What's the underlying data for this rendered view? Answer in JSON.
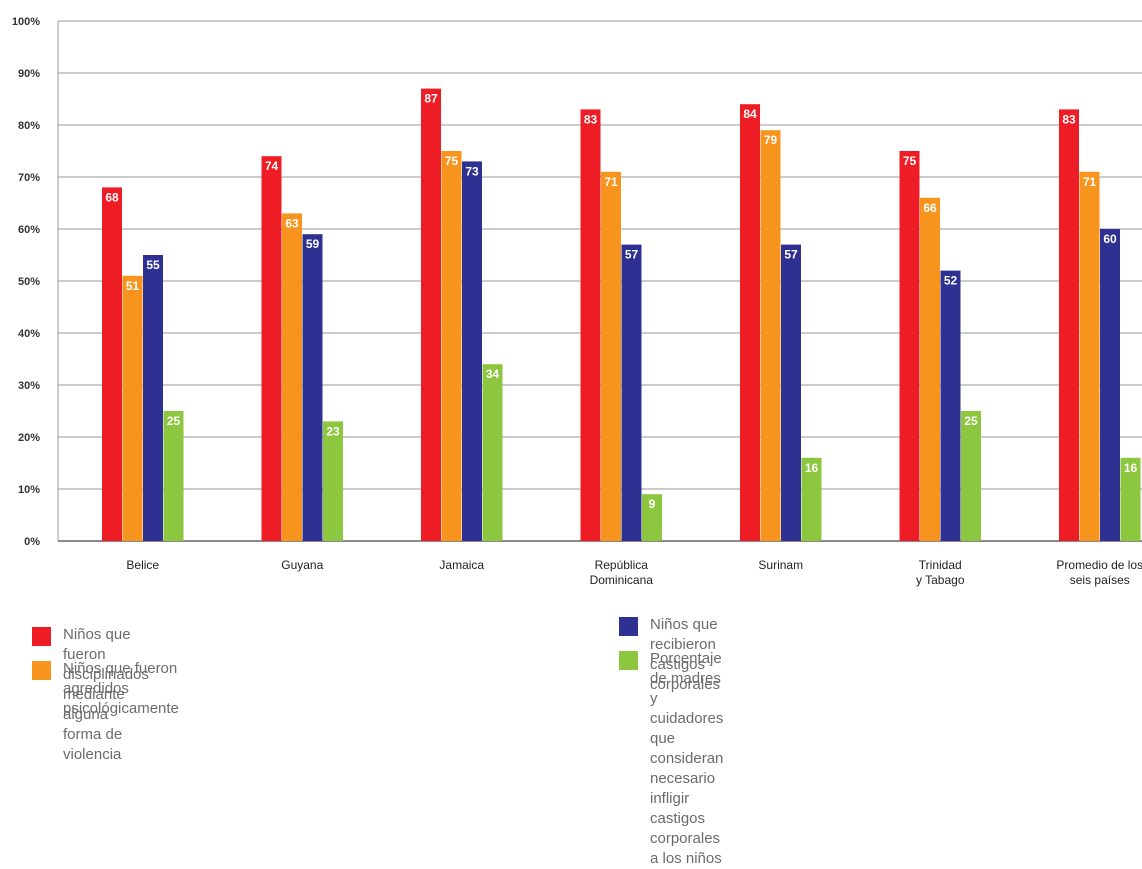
{
  "chart_data": {
    "type": "bar",
    "categories": [
      "Belice",
      "Guyana",
      "Jamaica",
      "República\nDominicana",
      "Surinam",
      "Trinidad\ny Tabago",
      "Promedio de los\nseis países"
    ],
    "series": [
      {
        "name": "Niños que fueron disciplinados mediante alguna forma de violencia",
        "color": "#ee1c24",
        "values": [
          68,
          74,
          87,
          83,
          84,
          75,
          83
        ]
      },
      {
        "name": "Niños que fueron agredidos psicológicamente",
        "color": "#f7941d",
        "values": [
          51,
          63,
          75,
          71,
          79,
          66,
          71
        ]
      },
      {
        "name": "Niños que recibieron castigos corporales",
        "color": "#2e3192",
        "values": [
          55,
          59,
          73,
          57,
          57,
          52,
          60
        ]
      },
      {
        "name": "Porcentaje de madres y cuidadores que consideran necesario\ninfligir castigos corporales a los niños",
        "color": "#8dc63f",
        "values": [
          25,
          23,
          34,
          9,
          16,
          25,
          16
        ]
      }
    ],
    "yticks": [
      "0%",
      "10%",
      "20%",
      "30%",
      "40%",
      "50%",
      "60%",
      "70%",
      "80%",
      "90%",
      "100%"
    ],
    "ylim": [
      0,
      100
    ],
    "grid": true,
    "legend_position": "bottom"
  }
}
